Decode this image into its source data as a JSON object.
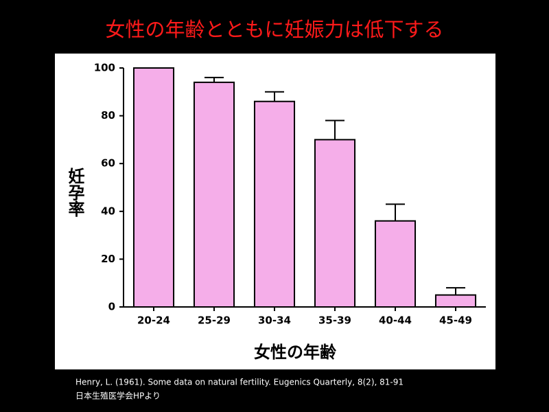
{
  "chart_data": {
    "type": "bar",
    "title": "女性の年齢とともに妊娠力は低下する",
    "x_label": "女性の年齢",
    "y_label": "妊孕率",
    "categories": [
      "20-24",
      "25-29",
      "30-34",
      "35-39",
      "40-44",
      "45-49"
    ],
    "values": [
      100,
      94,
      86,
      70,
      36,
      5
    ],
    "errors": [
      0,
      2,
      4,
      8,
      7,
      3
    ],
    "color": "#f5aee9",
    "ylim": [
      0,
      100
    ],
    "yticks": [
      0,
      20,
      40,
      60,
      80,
      100
    ],
    "grid": false,
    "source": [
      "Henry, L. (1961). Some data on natural fertility. Eugenics Quarterly, 8(2), 81-91",
      "日本生殖医学会HPより"
    ]
  }
}
